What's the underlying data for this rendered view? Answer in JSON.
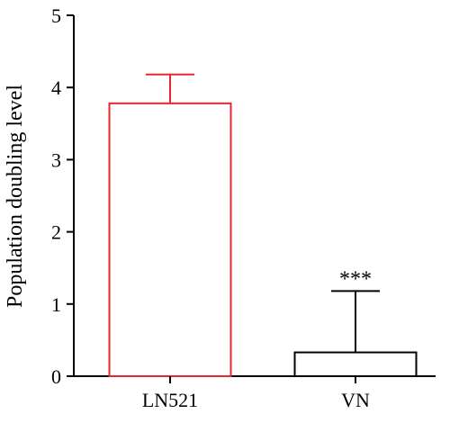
{
  "chart_data": {
    "type": "bar",
    "categories": [
      "LN521",
      "VN"
    ],
    "values": [
      3.78,
      0.33
    ],
    "error_upper": [
      4.18,
      1.18
    ],
    "bar_colors": [
      "#e8262e",
      "#000000"
    ],
    "ylabel": "Population doubling level",
    "xlabel": "",
    "title": "",
    "ylim": [
      0,
      5
    ],
    "yticks": [
      0,
      1,
      2,
      3,
      4,
      5
    ],
    "grid": false,
    "annotations": [
      {
        "category": "VN",
        "text": "***"
      }
    ]
  }
}
